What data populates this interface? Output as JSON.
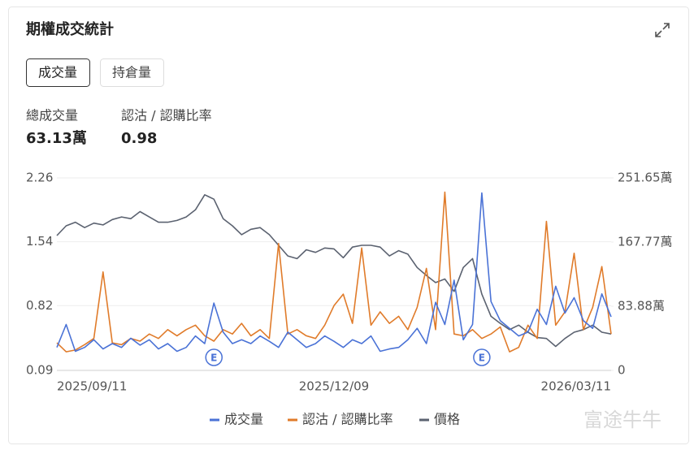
{
  "header": {
    "title": "期權成交統計"
  },
  "tabs": [
    "成交量",
    "持倉量"
  ],
  "active_tab": 0,
  "stats": [
    {
      "label": "總成交量",
      "value": "63.13萬"
    },
    {
      "label": "認沽 / 認購比率",
      "value": "0.98"
    }
  ],
  "watermark": "富途牛牛",
  "chart_data": {
    "type": "line",
    "grid": true,
    "categories": [
      "2025/09/11",
      null,
      null,
      null,
      null,
      null,
      null,
      null,
      null,
      null,
      null,
      null,
      null,
      null,
      null,
      null,
      null,
      null,
      null,
      null,
      null,
      null,
      null,
      null,
      null,
      null,
      null,
      null,
      null,
      null,
      "2025/12/09",
      null,
      null,
      null,
      null,
      null,
      null,
      null,
      null,
      null,
      null,
      null,
      null,
      null,
      null,
      null,
      null,
      null,
      null,
      null,
      null,
      null,
      null,
      null,
      null,
      null,
      null,
      null,
      null,
      null,
      "2026/03/11"
    ],
    "ylim": [
      0.09,
      2.26
    ],
    "yticks": [
      0.09,
      0.82,
      1.54,
      2.26
    ],
    "y2lim": [
      0,
      251.65
    ],
    "y2ticks": [
      0,
      {
        "value": 83.88,
        "label": "83.88萬"
      },
      {
        "value": 167.77,
        "label": "167.77萬"
      },
      {
        "value": 251.65,
        "label": "251.65萬"
      }
    ],
    "series": [
      {
        "name": "成交量",
        "color": "#4a72d6",
        "axis": "y2",
        "values": [
          30,
          60,
          25,
          30,
          40,
          28,
          35,
          30,
          42,
          33,
          40,
          28,
          35,
          25,
          30,
          45,
          35,
          88,
          50,
          35,
          40,
          35,
          45,
          38,
          30,
          50,
          40,
          30,
          35,
          45,
          38,
          30,
          40,
          35,
          45,
          25,
          28,
          30,
          40,
          55,
          35,
          89,
          60,
          118,
          40,
          60,
          232,
          90,
          65,
          55,
          45,
          50,
          80,
          60,
          110,
          75,
          95,
          65,
          55,
          100,
          70
        ]
      },
      {
        "name": "認沽 / 認購比率",
        "color": "#e07b2a",
        "values": [
          0.4,
          0.3,
          0.32,
          0.38,
          0.45,
          1.2,
          0.4,
          0.38,
          0.45,
          0.42,
          0.5,
          0.45,
          0.55,
          0.48,
          0.55,
          0.6,
          0.48,
          0.42,
          0.55,
          0.5,
          0.62,
          0.48,
          0.55,
          0.45,
          1.52,
          0.5,
          0.55,
          0.48,
          0.45,
          0.6,
          0.82,
          0.95,
          0.62,
          1.47,
          0.6,
          0.75,
          0.62,
          0.7,
          0.55,
          0.8,
          1.24,
          0.55,
          2.1,
          0.5,
          0.48,
          0.55,
          0.45,
          0.5,
          0.58,
          0.3,
          0.35,
          0.6,
          0.45,
          1.77,
          0.6,
          0.75,
          1.41,
          0.55,
          0.8,
          1.26,
          0.5
        ]
      },
      {
        "name": "價格",
        "color": "#5b6270",
        "values": [
          1.61,
          1.72,
          1.76,
          1.7,
          1.75,
          1.73,
          1.79,
          1.82,
          1.8,
          1.88,
          1.82,
          1.76,
          1.76,
          1.78,
          1.82,
          1.9,
          2.07,
          2.02,
          1.8,
          1.72,
          1.62,
          1.68,
          1.7,
          1.62,
          1.5,
          1.38,
          1.35,
          1.45,
          1.42,
          1.47,
          1.46,
          1.36,
          1.48,
          1.5,
          1.5,
          1.48,
          1.38,
          1.44,
          1.4,
          1.25,
          1.16,
          1.08,
          1.12,
          0.98,
          1.25,
          1.35,
          0.95,
          0.7,
          0.62,
          0.55,
          0.6,
          0.52,
          0.46,
          0.45,
          0.36,
          0.45,
          0.52,
          0.55,
          0.6,
          0.52,
          0.5
        ]
      }
    ],
    "annotations": [
      {
        "text": "E",
        "x": 17
      },
      {
        "text": "E",
        "x": 46
      }
    ]
  }
}
